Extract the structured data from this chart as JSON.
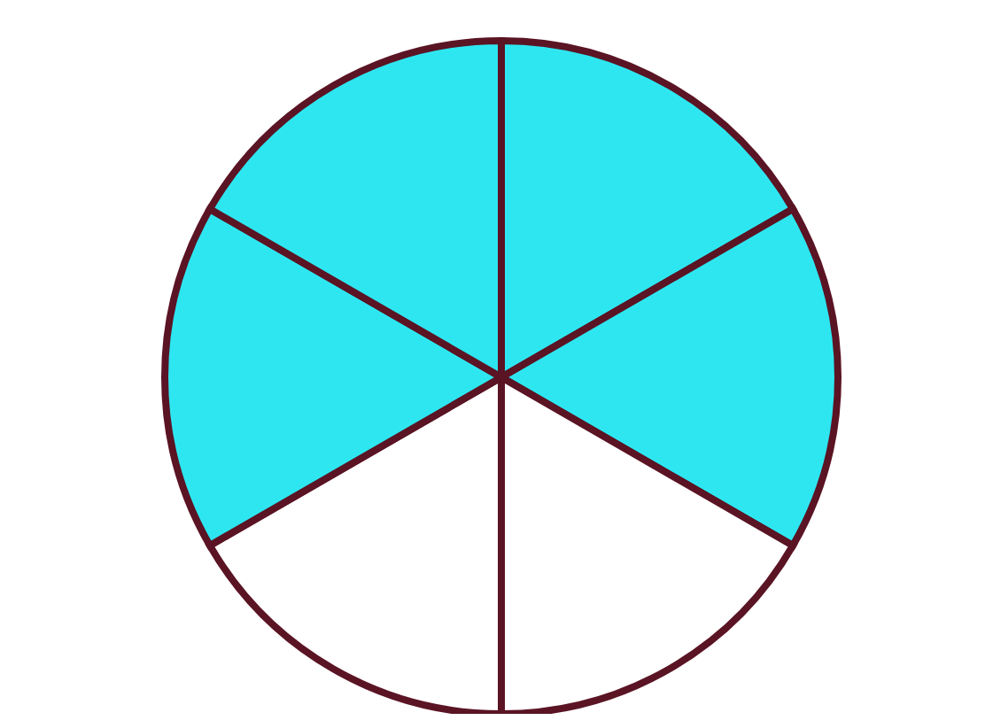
{
  "chart_data": {
    "type": "pie",
    "categories": [
      null,
      null,
      null,
      null,
      null,
      null
    ],
    "values": [
      16.67,
      16.67,
      16.67,
      16.67,
      16.67,
      16.67
    ],
    "colors": [
      "#2ee6f0",
      "#2ee6f0",
      "#ffffff",
      "#ffffff",
      "#2ee6f0",
      "#2ee6f0"
    ]
  }
}
